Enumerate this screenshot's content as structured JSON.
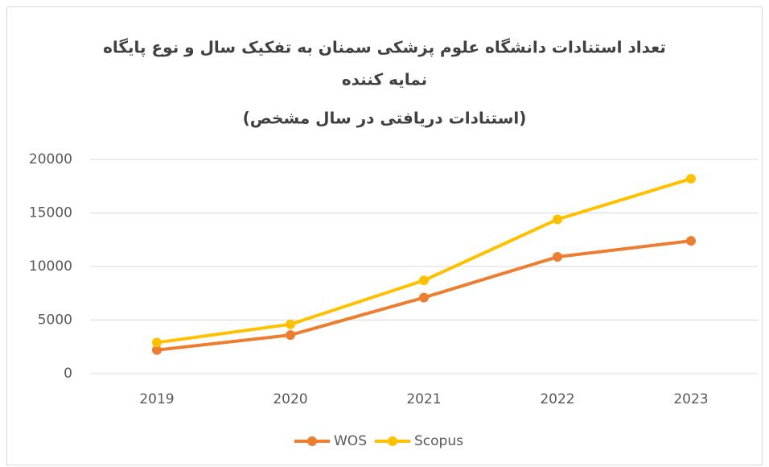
{
  "chart_data": {
    "type": "line",
    "title": [
      "تعداد استنادات دانشگاه علوم پزشکی سمنان به تفکیک سال و نوع پایگاه",
      "نمایه کننده"
    ],
    "subtitle": "(استنادات دریافتی در سال مشخص)",
    "categories": [
      "2019",
      "2020",
      "2021",
      "2022",
      "2023"
    ],
    "series": [
      {
        "name": "WOS",
        "color": "#ed7d31",
        "values": [
          2200,
          3600,
          7100,
          10900,
          12400
        ]
      },
      {
        "name": "Scopus",
        "color": "#ffc000",
        "values": [
          2900,
          4600,
          8700,
          14400,
          18200
        ]
      }
    ],
    "ylim": [
      0,
      20000
    ],
    "yticks": [
      0,
      5000,
      10000,
      15000,
      20000
    ],
    "grid": true,
    "legend": "bottom"
  }
}
